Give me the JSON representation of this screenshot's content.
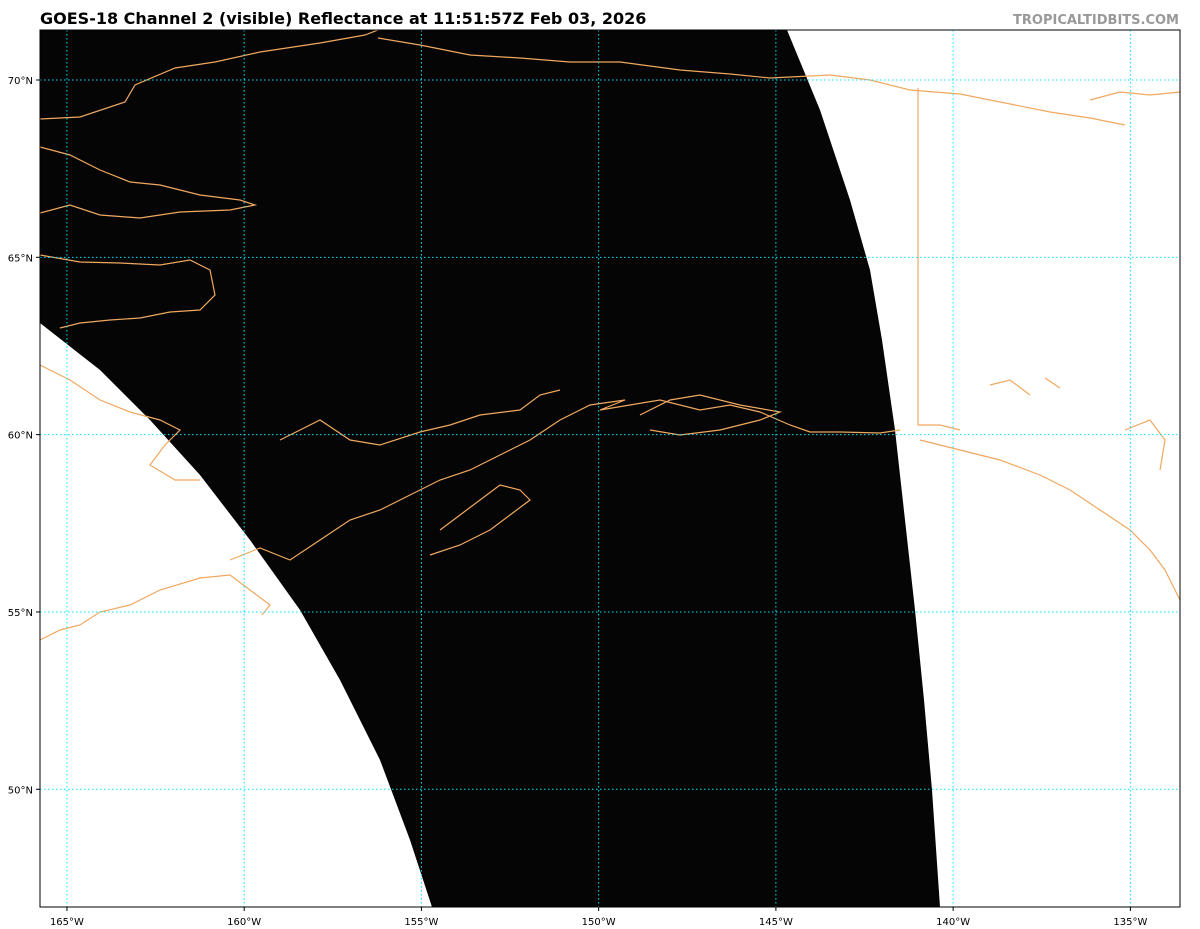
{
  "map": {
    "title": "GOES-18 Channel 2 (visible) Reflectance at 11:51:57Z Feb 03, 2026",
    "credit": "TROPICALTIDBITS.COM",
    "lon_range": [
      -165.76,
      -133.6
    ],
    "lat_range": [
      46.68,
      71.41
    ],
    "lon_ticks": [
      {
        "value": -165,
        "label": "165°W"
      },
      {
        "value": -160,
        "label": "160°W"
      },
      {
        "value": -155,
        "label": "155°W"
      },
      {
        "value": -150,
        "label": "150°W"
      },
      {
        "value": -145,
        "label": "145°W"
      },
      {
        "value": -140,
        "label": "140°W"
      },
      {
        "value": -135,
        "label": "135°W"
      }
    ],
    "lat_ticks": [
      {
        "value": 50,
        "label": "50°N"
      },
      {
        "value": 55,
        "label": "55°N"
      },
      {
        "value": 60,
        "label": "60°N"
      },
      {
        "value": 65,
        "label": "65°N"
      },
      {
        "value": 70,
        "label": "70°N"
      }
    ]
  }
}
